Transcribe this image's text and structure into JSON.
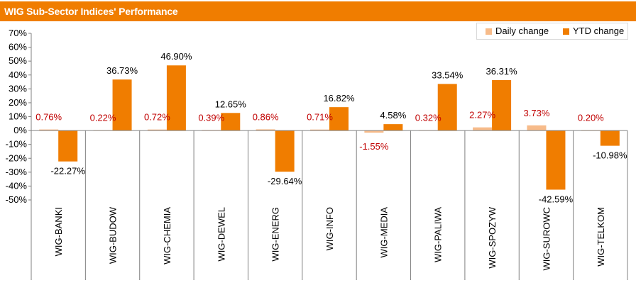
{
  "title": "WIG Sub-Sector Indices' Performance",
  "colors": {
    "title_bar": "#f07d00",
    "daily": "#f7bb8a",
    "ytd": "#f07d00",
    "daily_label": "#c00000",
    "ytd_label": "#000000"
  },
  "legend": {
    "daily_label": "Daily change",
    "ytd_label": "YTD change",
    "placement": "top-right"
  },
  "chart_data": {
    "type": "bar",
    "title": "WIG Sub-Sector Indices' Performance",
    "categories": [
      "WIG-BANKI",
      "WIG-BUDOW",
      "WIG-CHEMIA",
      "WIG-DEWEL",
      "WIG-ENERG",
      "WIG-INFO",
      "WIG-MEDIA",
      "WIG-PALIWA",
      "WIG-SPOZYW",
      "WIG-SUROWC",
      "WIG-TELKOM"
    ],
    "series": [
      {
        "name": "Daily change",
        "values": [
          0.76,
          0.22,
          0.72,
          0.39,
          0.86,
          0.71,
          -1.55,
          0.32,
          2.27,
          3.73,
          0.2
        ],
        "labels": [
          "0.76%",
          "0.22%",
          "0.72%",
          "0.39%",
          "0.86%",
          "0.71%",
          "-1.55%",
          "0.32%",
          "2.27%",
          "3.73%",
          "0.20%"
        ]
      },
      {
        "name": "YTD change",
        "values": [
          -22.27,
          36.73,
          46.9,
          12.65,
          -29.64,
          16.82,
          4.58,
          33.54,
          36.31,
          -42.59,
          -10.98
        ],
        "labels": [
          "-22.27%",
          "36.73%",
          "46.90%",
          "12.65%",
          "-29.64%",
          "16.82%",
          "4.58%",
          "33.54%",
          "36.31%",
          "-42.59%",
          "-10.98%"
        ]
      }
    ],
    "yticks": [
      "70%",
      "60%",
      "50%",
      "40%",
      "30%",
      "20%",
      "10%",
      "0%",
      "-10%",
      "-20%",
      "-30%",
      "-40%",
      "-50%"
    ],
    "ylim": [
      -50,
      70
    ],
    "grid": false
  }
}
